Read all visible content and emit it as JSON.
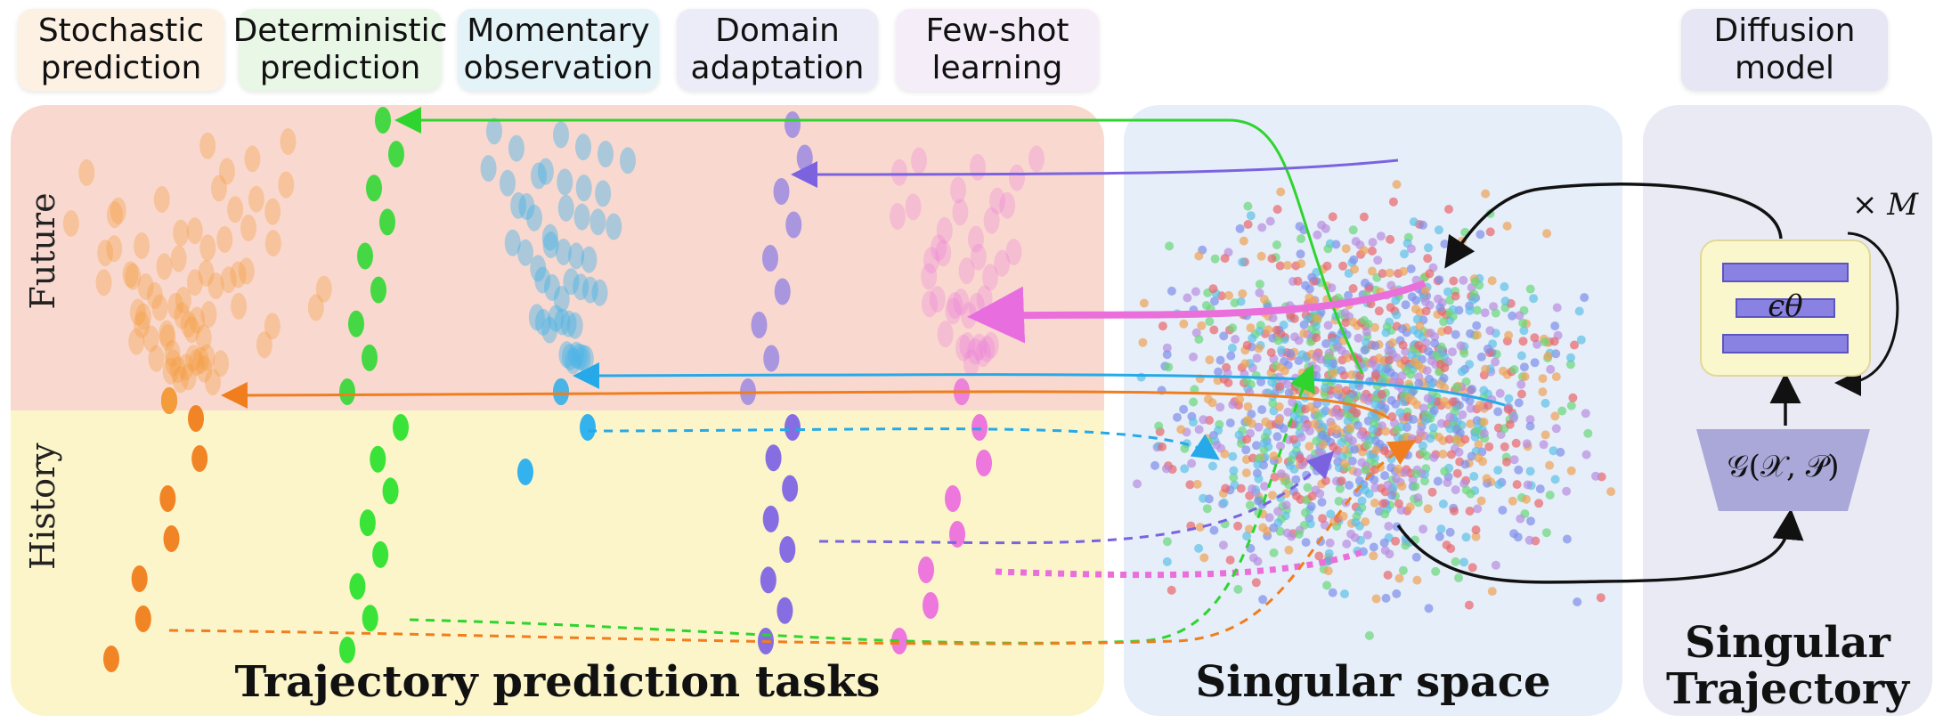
{
  "tasks": [
    {
      "label": "Stochastic\nprediction",
      "color": "#f39a3c"
    },
    {
      "label": "Deterministic\nprediction",
      "color": "#39d63a"
    },
    {
      "label": "Momentary\nobservation",
      "color": "#4ab3e6"
    },
    {
      "label": "Domain\nadaptation",
      "color": "#8b74e0"
    },
    {
      "label": "Few-shot\nlearning",
      "color": "#ea7fdc"
    }
  ],
  "diffusion_tag": "Diffusion\nmodel",
  "axis_labels": {
    "future": "Future",
    "history": "History"
  },
  "panels": {
    "tasks_title": "Trajectory prediction tasks",
    "space_title": "Singular space",
    "model_title": "Singular\nTrajectory"
  },
  "model": {
    "epsilon": "ϵθ",
    "repeat": "× M",
    "generator": "𝒢(𝒳, 𝒫)"
  }
}
